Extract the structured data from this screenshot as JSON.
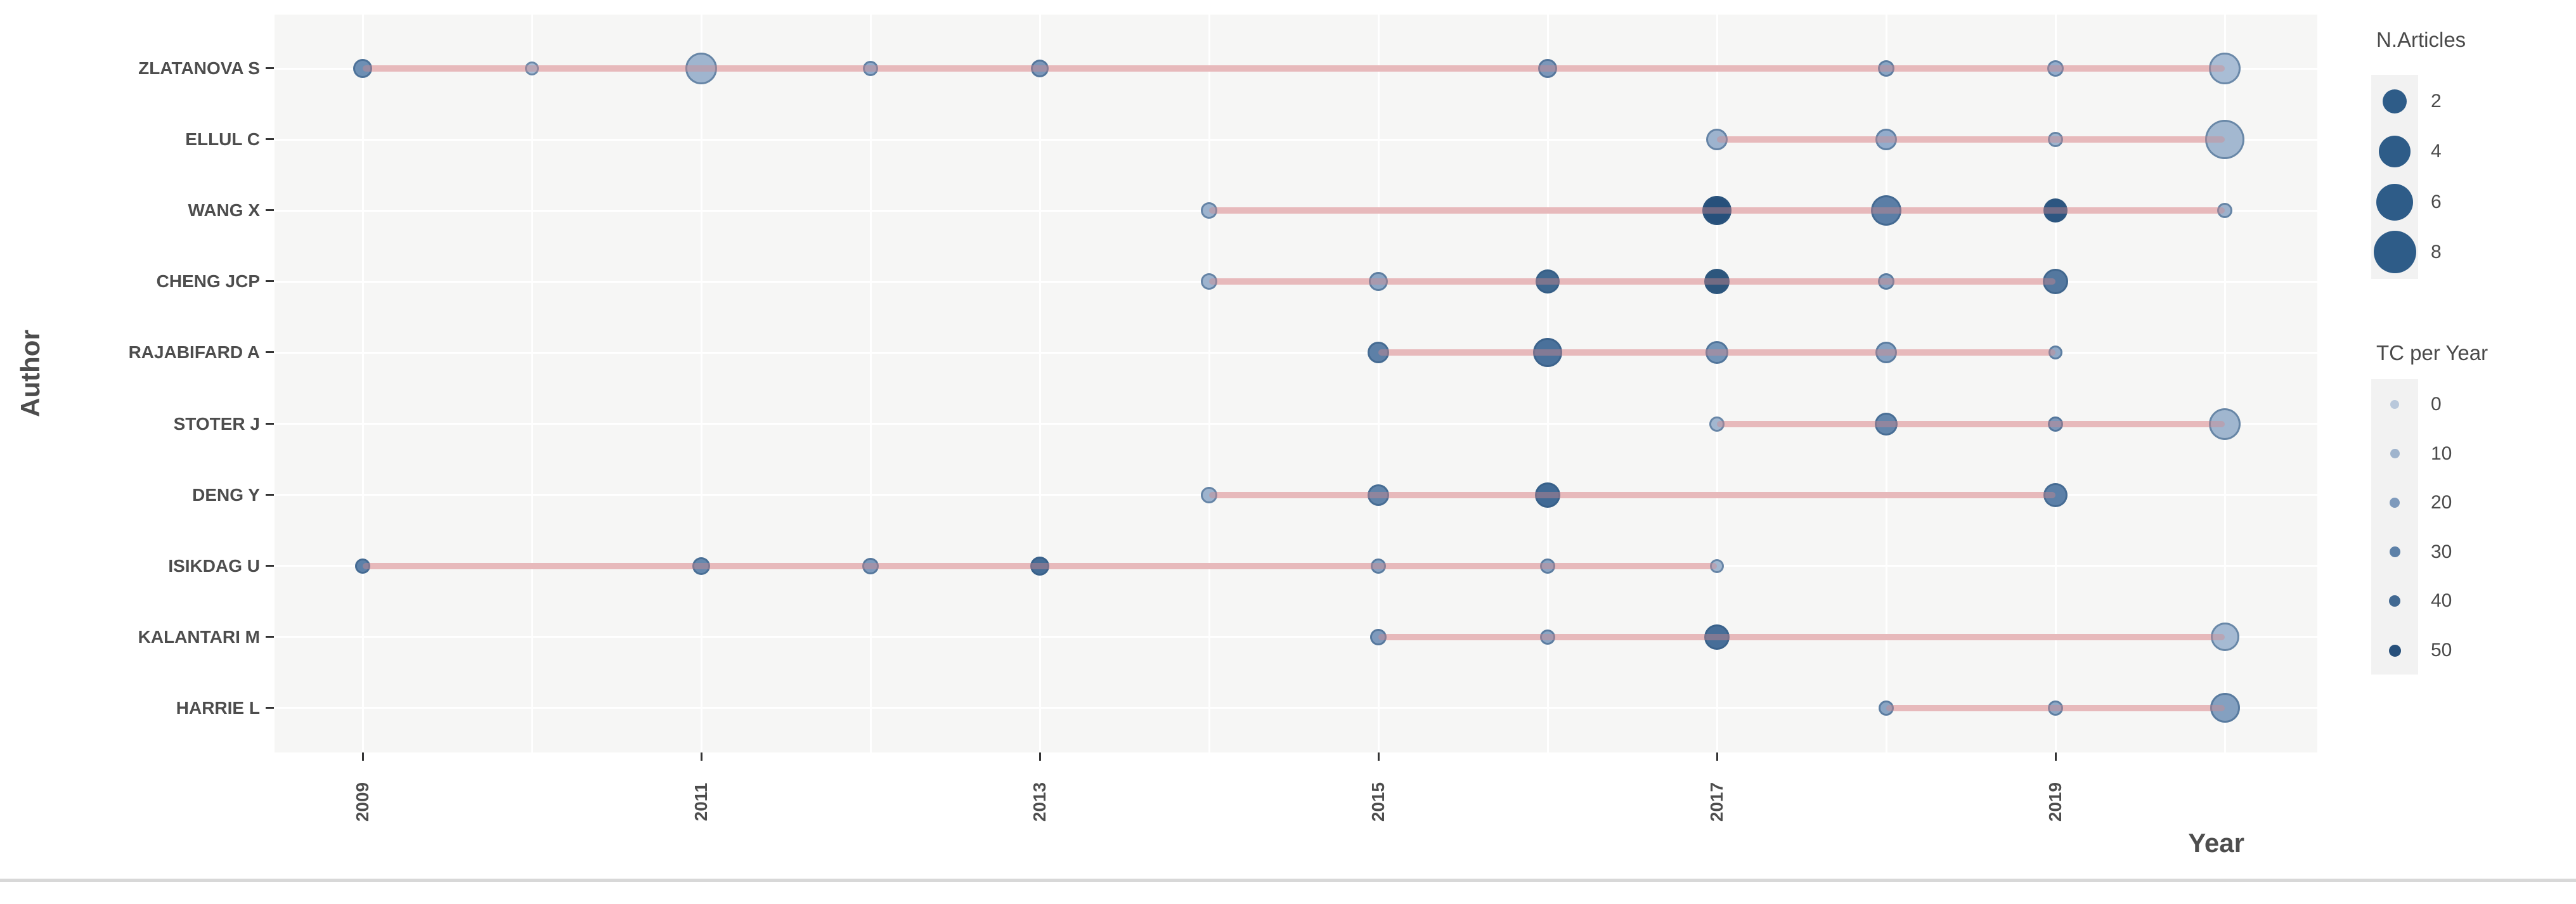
{
  "chart_data": {
    "type": "scatter",
    "xlabel": "Year",
    "ylabel": "Author",
    "x_range": [
      2008.5,
      2020.5
    ],
    "x_tick_labels": [
      2009,
      2011,
      2013,
      2015,
      2017,
      2019
    ],
    "gridline_years": [
      2009,
      2010,
      2011,
      2012,
      2013,
      2014,
      2015,
      2016,
      2017,
      2018,
      2019,
      2020
    ],
    "grid": "on",
    "legend_position": "right",
    "series": [
      {
        "author": "ZLATANOVA S",
        "line_start": 2009,
        "line_end": 2020,
        "points": [
          {
            "year": 2009,
            "n_articles": 1,
            "tc_per_year": 15,
            "d": 30,
            "color": "#6d8fb4"
          },
          {
            "year": 2010,
            "n_articles": 1,
            "tc_per_year": 2,
            "d": 22,
            "color": "#a9bdd5"
          },
          {
            "year": 2011,
            "n_articles": 4,
            "tc_per_year": 5,
            "d": 50,
            "color": "#9fb5cf"
          },
          {
            "year": 2012,
            "n_articles": 1,
            "tc_per_year": 7,
            "d": 24,
            "color": "#93accc"
          },
          {
            "year": 2013,
            "n_articles": 1,
            "tc_per_year": 12,
            "d": 28,
            "color": "#7b97ba"
          },
          {
            "year": 2016,
            "n_articles": 1,
            "tc_per_year": 12,
            "d": 30,
            "color": "#7b97ba"
          },
          {
            "year": 2018,
            "n_articles": 1,
            "tc_per_year": 9,
            "d": 26,
            "color": "#8aa5c4"
          },
          {
            "year": 2019,
            "n_articles": 1,
            "tc_per_year": 7,
            "d": 26,
            "color": "#93accc"
          },
          {
            "year": 2020,
            "n_articles": 4,
            "tc_per_year": 2,
            "d": 50,
            "color": "#a9bdd5"
          }
        ]
      },
      {
        "author": "ELLUL C",
        "line_start": 2017,
        "line_end": 2020,
        "points": [
          {
            "year": 2017,
            "n_articles": 2,
            "tc_per_year": 5,
            "d": 34,
            "color": "#9db3ce"
          },
          {
            "year": 2018,
            "n_articles": 2,
            "tc_per_year": 7,
            "d": 34,
            "color": "#93accc"
          },
          {
            "year": 2019,
            "n_articles": 1,
            "tc_per_year": 4,
            "d": 24,
            "color": "#9fb5cf"
          },
          {
            "year": 2020,
            "n_articles": 8,
            "tc_per_year": 4,
            "d": 62,
            "color": "#a3b8d0"
          }
        ]
      },
      {
        "author": "WANG X",
        "line_start": 2014,
        "line_end": 2020,
        "points": [
          {
            "year": 2014,
            "n_articles": 1,
            "tc_per_year": 5,
            "d": 26,
            "color": "#9db3ce"
          },
          {
            "year": 2017,
            "n_articles": 4,
            "tc_per_year": 50,
            "d": 46,
            "color": "#27507b"
          },
          {
            "year": 2018,
            "n_articles": 4,
            "tc_per_year": 26,
            "d": 48,
            "color": "#5b7ea6"
          },
          {
            "year": 2019,
            "n_articles": 2,
            "tc_per_year": 46,
            "d": 38,
            "color": "#2d5681"
          },
          {
            "year": 2020,
            "n_articles": 1,
            "tc_per_year": 6,
            "d": 24,
            "color": "#9cb2cd"
          }
        ]
      },
      {
        "author": "CHENG JCP",
        "line_start": 2014,
        "line_end": 2019,
        "points": [
          {
            "year": 2014,
            "n_articles": 1,
            "tc_per_year": 5,
            "d": 26,
            "color": "#9db3ce"
          },
          {
            "year": 2015,
            "n_articles": 1,
            "tc_per_year": 9,
            "d": 30,
            "color": "#8ca6c5"
          },
          {
            "year": 2016,
            "n_articles": 2,
            "tc_per_year": 36,
            "d": 38,
            "color": "#3f6890"
          },
          {
            "year": 2017,
            "n_articles": 3,
            "tc_per_year": 47,
            "d": 40,
            "color": "#2d567d"
          },
          {
            "year": 2018,
            "n_articles": 1,
            "tc_per_year": 10,
            "d": 26,
            "color": "#87a2c2"
          },
          {
            "year": 2019,
            "n_articles": 3,
            "tc_per_year": 28,
            "d": 40,
            "color": "#54789f"
          }
        ]
      },
      {
        "author": "RAJABIFARD A",
        "line_start": 2015,
        "line_end": 2019,
        "points": [
          {
            "year": 2015,
            "n_articles": 2,
            "tc_per_year": 25,
            "d": 34,
            "color": "#5d80a7"
          },
          {
            "year": 2016,
            "n_articles": 4,
            "tc_per_year": 31,
            "d": 46,
            "color": "#4a719b"
          },
          {
            "year": 2017,
            "n_articles": 2,
            "tc_per_year": 15,
            "d": 36,
            "color": "#7495b8"
          },
          {
            "year": 2018,
            "n_articles": 2,
            "tc_per_year": 10,
            "d": 34,
            "color": "#87a2c2"
          },
          {
            "year": 2019,
            "n_articles": 1,
            "tc_per_year": 9,
            "d": 22,
            "color": "#8fa9c7"
          }
        ]
      },
      {
        "author": "STOTER J",
        "line_start": 2017,
        "line_end": 2020,
        "points": [
          {
            "year": 2017,
            "n_articles": 1,
            "tc_per_year": 4,
            "d": 24,
            "color": "#a2b7d0"
          },
          {
            "year": 2018,
            "n_articles": 2,
            "tc_per_year": 21,
            "d": 36,
            "color": "#6386ac"
          },
          {
            "year": 2019,
            "n_articles": 1,
            "tc_per_year": 12,
            "d": 24,
            "color": "#7b97ba"
          },
          {
            "year": 2020,
            "n_articles": 4,
            "tc_per_year": 5,
            "d": 50,
            "color": "#a0b6cf"
          }
        ]
      },
      {
        "author": "DENG Y",
        "line_start": 2014,
        "line_end": 2019,
        "points": [
          {
            "year": 2014,
            "n_articles": 1,
            "tc_per_year": 5,
            "d": 26,
            "color": "#9db3ce"
          },
          {
            "year": 2015,
            "n_articles": 2,
            "tc_per_year": 22,
            "d": 34,
            "color": "#6184aa"
          },
          {
            "year": 2016,
            "n_articles": 3,
            "tc_per_year": 34,
            "d": 40,
            "color": "#416a95"
          },
          {
            "year": 2019,
            "n_articles": 2,
            "tc_per_year": 25,
            "d": 38,
            "color": "#5c80a8"
          }
        ]
      },
      {
        "author": "ISIKDAG U",
        "line_start": 2009,
        "line_end": 2017,
        "points": [
          {
            "year": 2009,
            "n_articles": 1,
            "tc_per_year": 25,
            "d": 24,
            "color": "#5c80a8"
          },
          {
            "year": 2011,
            "n_articles": 1,
            "tc_per_year": 20,
            "d": 28,
            "color": "#6588ae"
          },
          {
            "year": 2012,
            "n_articles": 1,
            "tc_per_year": 13,
            "d": 26,
            "color": "#7e9abd"
          },
          {
            "year": 2013,
            "n_articles": 1,
            "tc_per_year": 33,
            "d": 30,
            "color": "#446c96"
          },
          {
            "year": 2015,
            "n_articles": 1,
            "tc_per_year": 10,
            "d": 24,
            "color": "#87a2c2"
          },
          {
            "year": 2016,
            "n_articles": 1,
            "tc_per_year": 9,
            "d": 24,
            "color": "#8aa5c4"
          },
          {
            "year": 2017,
            "n_articles": 1,
            "tc_per_year": 4,
            "d": 22,
            "color": "#a2b7d0"
          }
        ]
      },
      {
        "author": "KALANTARI M",
        "line_start": 2015,
        "line_end": 2020,
        "points": [
          {
            "year": 2015,
            "n_articles": 1,
            "tc_per_year": 13,
            "d": 26,
            "color": "#7e9abd"
          },
          {
            "year": 2016,
            "n_articles": 1,
            "tc_per_year": 9,
            "d": 24,
            "color": "#8aa5c4"
          },
          {
            "year": 2017,
            "n_articles": 3,
            "tc_per_year": 32,
            "d": 40,
            "color": "#476e98"
          },
          {
            "year": 2020,
            "n_articles": 3,
            "tc_per_year": 3,
            "d": 45,
            "color": "#a5bad3"
          }
        ]
      },
      {
        "author": "HARRIE L",
        "line_start": 2018,
        "line_end": 2020,
        "points": [
          {
            "year": 2018,
            "n_articles": 1,
            "tc_per_year": 9,
            "d": 24,
            "color": "#8aa5c4"
          },
          {
            "year": 2019,
            "n_articles": 1,
            "tc_per_year": 8,
            "d": 24,
            "color": "#8fa8c6"
          },
          {
            "year": 2020,
            "n_articles": 4,
            "tc_per_year": 10,
            "d": 47,
            "color": "#84a0c0"
          }
        ]
      }
    ],
    "legend_size": {
      "title": "N.Articles",
      "entries": [
        {
          "label": "2",
          "d": 38
        },
        {
          "label": "4",
          "d": 50
        },
        {
          "label": "6",
          "d": 58
        },
        {
          "label": "8",
          "d": 67
        }
      ],
      "dot_color": "#2e5c88"
    },
    "legend_color": {
      "title": "TC per Year",
      "entries": [
        {
          "label": "0",
          "d": 14,
          "color": "#b9c8db"
        },
        {
          "label": "10",
          "d": 15,
          "color": "#9fb4cd"
        },
        {
          "label": "20",
          "d": 16,
          "color": "#7e9abc"
        },
        {
          "label": "30",
          "d": 17,
          "color": "#5d81a8"
        },
        {
          "label": "40",
          "d": 18,
          "color": "#426992"
        },
        {
          "label": "50",
          "d": 19,
          "color": "#27507b"
        }
      ]
    }
  },
  "colors": {
    "panel_bg": "#f6f6f5",
    "gridline": "#ffffff",
    "timeline_pink": "#e7b8bb",
    "axis_text": "#4d4d4d",
    "legend_key_bg": "#f2f2f2",
    "divider": "#d8d8d8"
  }
}
